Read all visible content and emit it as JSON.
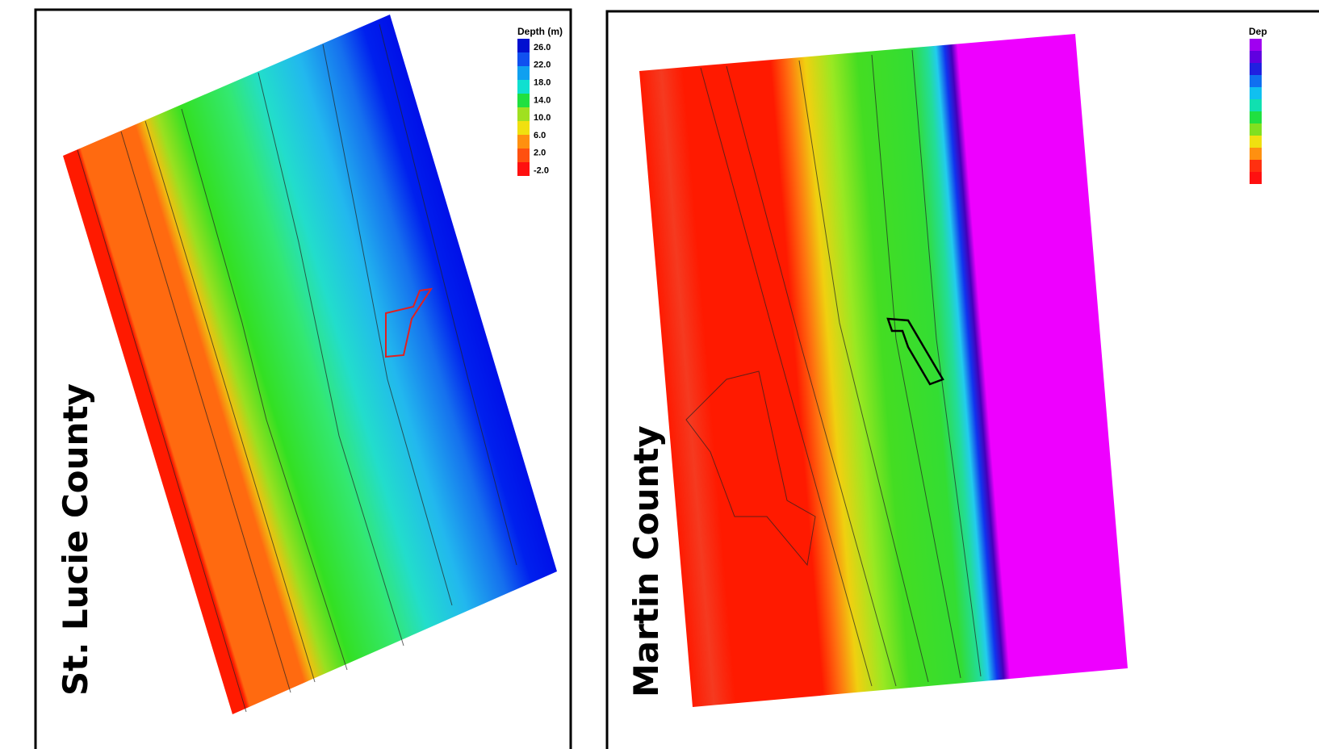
{
  "panels": [
    {
      "title": "St. Lucie County",
      "legend": {
        "title": "Depth (m)",
        "labels": [
          "26.0",
          "22.0",
          "18.0",
          "14.0",
          "10.0",
          "6.0",
          "2.0",
          "-2.0"
        ]
      }
    },
    {
      "title": "Martin County",
      "legend": {
        "title": "Dep"
      }
    }
  ]
}
